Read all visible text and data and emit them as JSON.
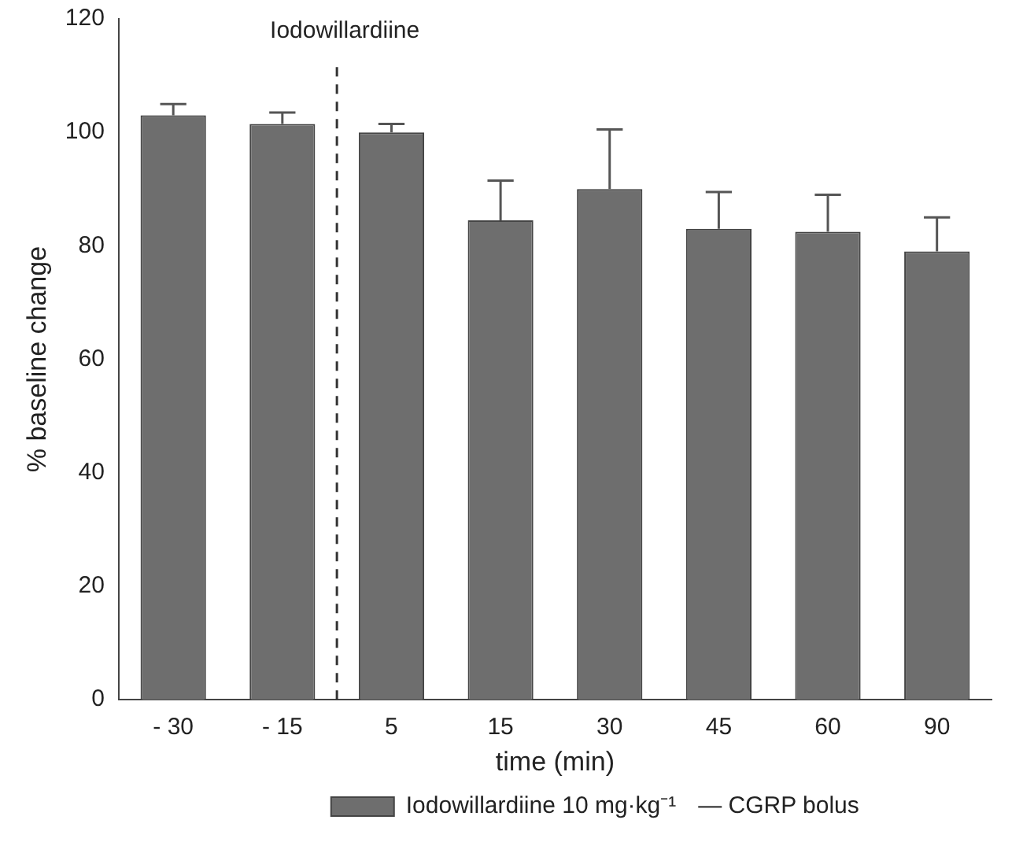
{
  "chart_data": {
    "type": "bar",
    "xlabel": "time (min)",
    "ylabel": "% baseline change",
    "categories": [
      "- 30",
      "- 15",
      "5",
      "15",
      "30",
      "45",
      "60",
      "90"
    ],
    "series": [
      {
        "name": "Iodowillardiine 10 mg·kg⁻¹",
        "color": "#6e6e6e",
        "values": [
          103,
          101.5,
          100,
          84.5,
          90,
          83,
          82.5,
          79
        ],
        "errors": [
          [
            103,
            105
          ],
          [
            101.5,
            103.5
          ],
          [
            100,
            101.5
          ],
          [
            84.5,
            91.5
          ],
          [
            90,
            100.5
          ],
          [
            83,
            89.5
          ],
          [
            82.5,
            89
          ],
          [
            79,
            85
          ]
        ]
      }
    ],
    "ylim": [
      0,
      120
    ],
    "yticks": [
      0,
      20,
      40,
      60,
      80,
      100,
      120
    ],
    "annotations": [
      "Iodowillardiine",
      "— CGRP bolus"
    ],
    "legend": "bottom",
    "grid": false
  }
}
